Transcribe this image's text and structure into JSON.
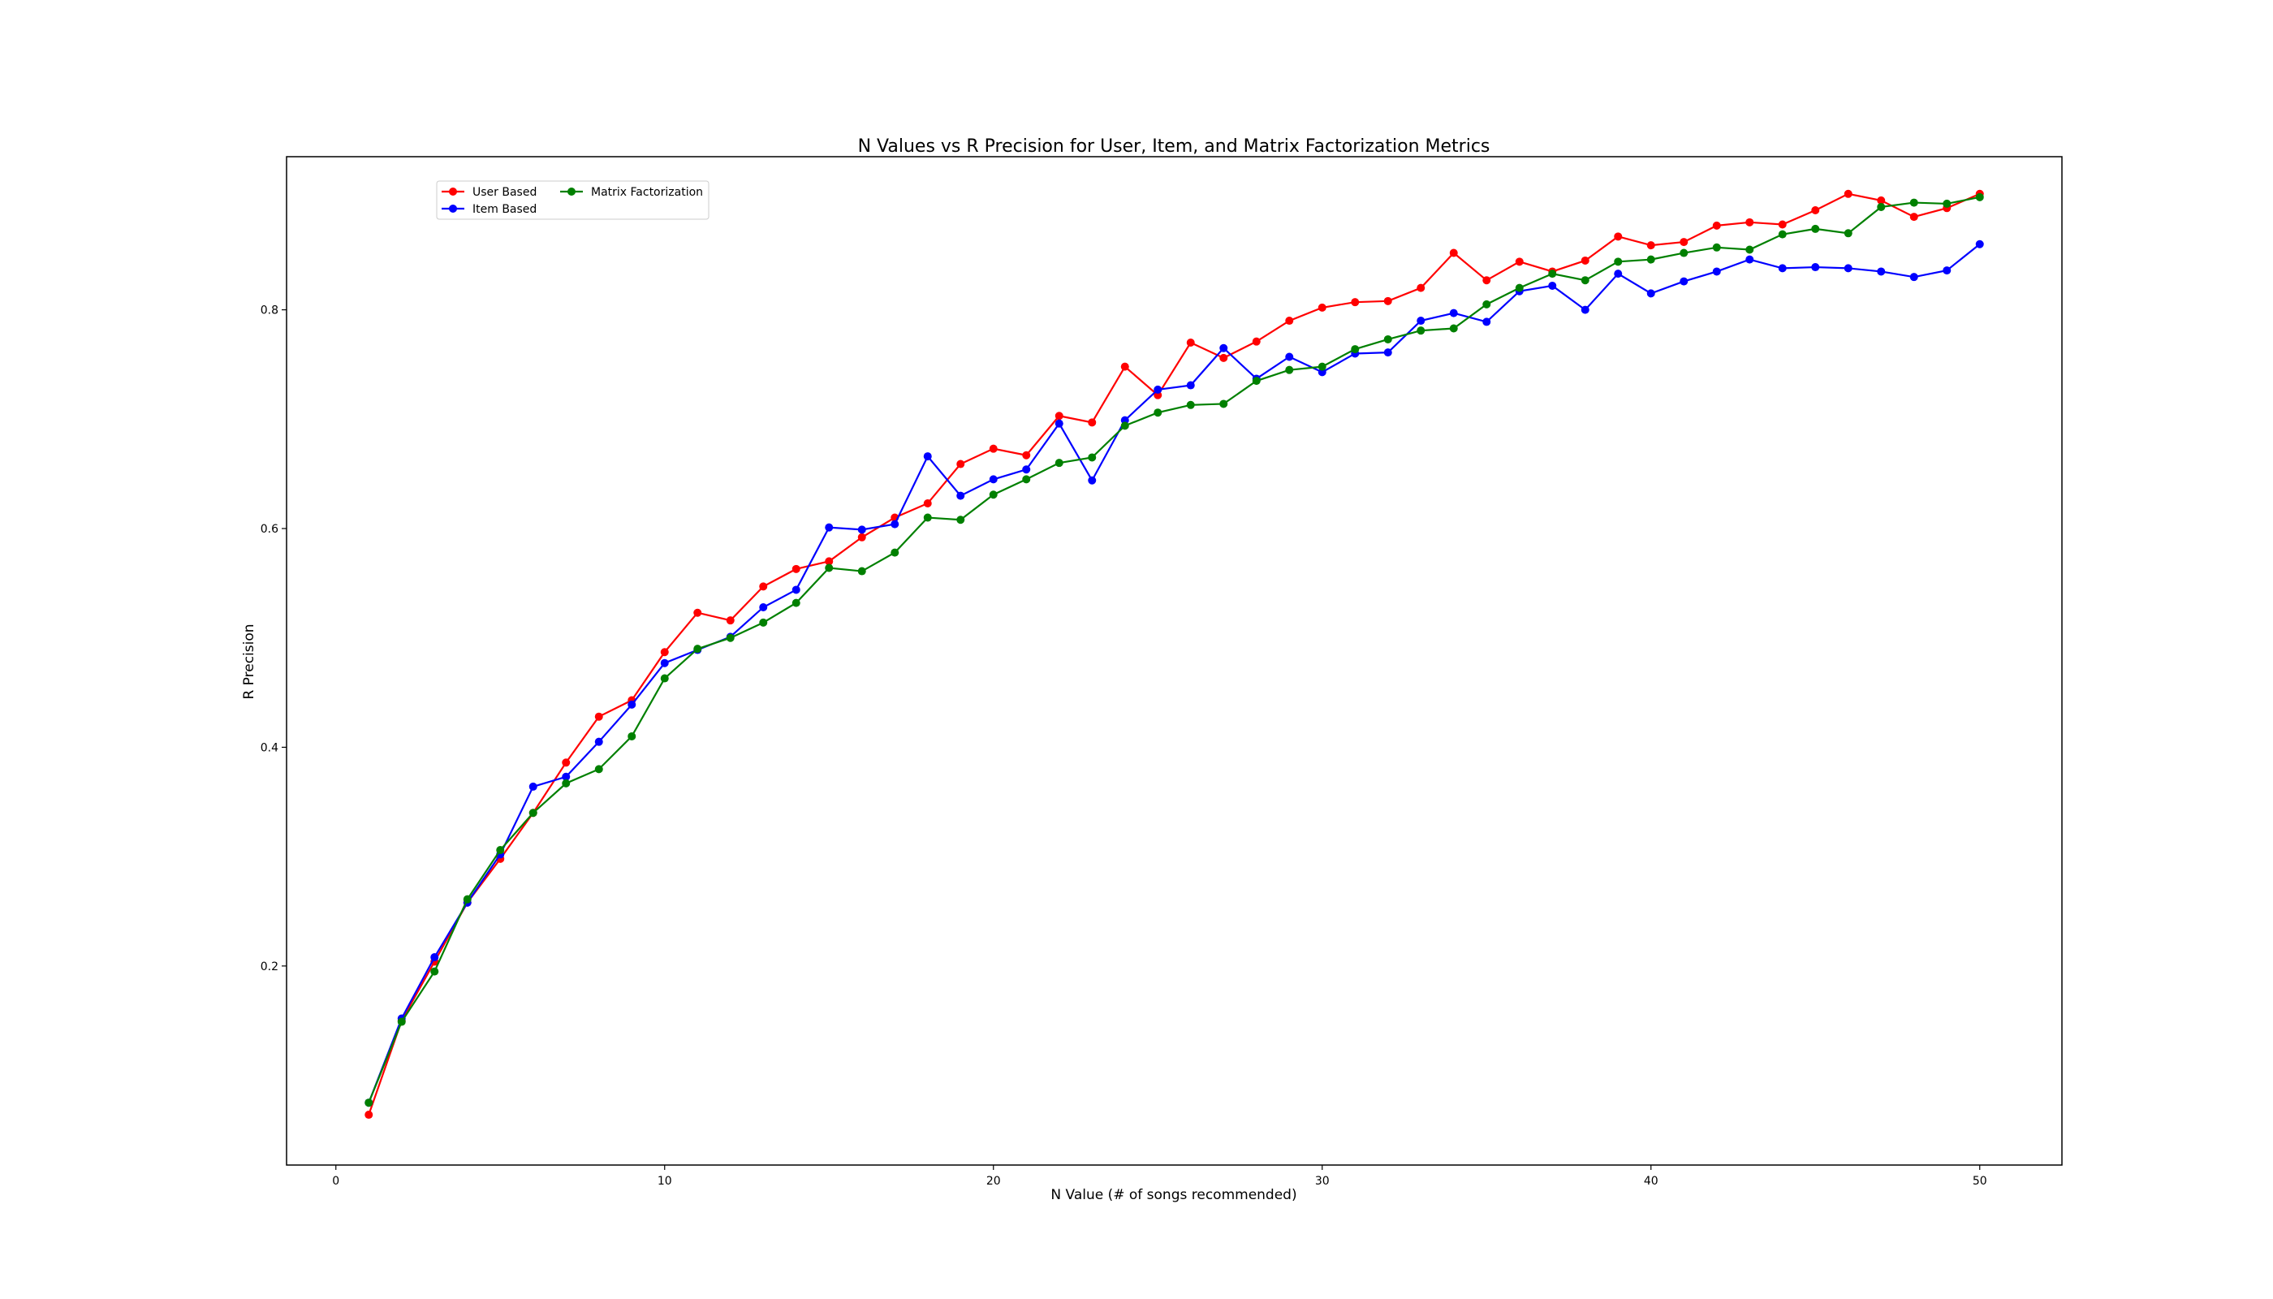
{
  "chart_data": {
    "type": "line",
    "title": "N Values vs R Precision for User, Item, and Matrix Factorization Metrics",
    "xlabel": "N Value (# of songs recommended)",
    "ylabel": "R Precision",
    "xlim": [
      -1.5,
      52.5
    ],
    "ylim": [
      0.018,
      0.94
    ],
    "xticks": [
      0,
      10,
      20,
      30,
      40,
      50
    ],
    "yticks": [
      0.2,
      0.4,
      0.6,
      0.8
    ],
    "xtick_labels": [
      "0",
      "10",
      "20",
      "30",
      "40",
      "50"
    ],
    "ytick_labels": [
      "0.2",
      "0.4",
      "0.6",
      "0.8"
    ],
    "grid": false,
    "legend_placement": "top-left",
    "x": [
      1,
      2,
      3,
      4,
      5,
      6,
      7,
      8,
      9,
      10,
      11,
      12,
      13,
      14,
      15,
      16,
      17,
      18,
      19,
      20,
      21,
      22,
      23,
      24,
      25,
      26,
      27,
      28,
      29,
      30,
      31,
      32,
      33,
      34,
      35,
      36,
      37,
      38,
      39,
      40,
      41,
      42,
      43,
      44,
      45,
      46,
      47,
      48,
      49,
      50
    ],
    "series": [
      {
        "name": "User Based",
        "color": "#ff0000",
        "values": [
          0.064,
          0.15,
          0.204,
          0.258,
          0.298,
          0.34,
          0.386,
          0.428,
          0.443,
          0.487,
          0.523,
          0.516,
          0.547,
          0.563,
          0.57,
          0.592,
          0.61,
          0.623,
          0.659,
          0.673,
          0.667,
          0.703,
          0.697,
          0.748,
          0.722,
          0.77,
          0.756,
          0.771,
          0.79,
          0.802,
          0.807,
          0.808,
          0.82,
          0.852,
          0.827,
          0.844,
          0.835,
          0.845,
          0.867,
          0.859,
          0.862,
          0.877,
          0.88,
          0.878,
          0.891,
          0.906,
          0.9,
          0.885,
          0.893,
          0.906
        ]
      },
      {
        "name": "Item Based",
        "color": "#0000ff",
        "values": [
          0.075,
          0.152,
          0.208,
          0.258,
          0.302,
          0.364,
          0.373,
          0.405,
          0.439,
          0.477,
          0.489,
          0.501,
          0.528,
          0.544,
          0.601,
          0.599,
          0.604,
          0.666,
          0.63,
          0.645,
          0.654,
          0.696,
          0.644,
          0.699,
          0.727,
          0.731,
          0.765,
          0.737,
          0.757,
          0.743,
          0.76,
          0.761,
          0.79,
          0.797,
          0.789,
          0.817,
          0.822,
          0.8,
          0.833,
          0.815,
          0.826,
          0.835,
          0.846,
          0.838,
          0.839,
          0.838,
          0.835,
          0.83,
          0.836,
          0.86
        ]
      },
      {
        "name": "Matrix Factorization",
        "color": "#008000",
        "values": [
          0.075,
          0.149,
          0.195,
          0.261,
          0.306,
          0.34,
          0.367,
          0.38,
          0.41,
          0.463,
          0.49,
          0.5,
          0.514,
          0.532,
          0.564,
          0.561,
          0.578,
          0.61,
          0.608,
          0.631,
          0.645,
          0.66,
          0.665,
          0.694,
          0.706,
          0.713,
          0.714,
          0.735,
          0.745,
          0.748,
          0.764,
          0.773,
          0.781,
          0.783,
          0.805,
          0.82,
          0.833,
          0.827,
          0.844,
          0.846,
          0.852,
          0.857,
          0.855,
          0.869,
          0.874,
          0.87,
          0.894,
          0.898,
          0.897,
          0.903
        ]
      }
    ]
  }
}
